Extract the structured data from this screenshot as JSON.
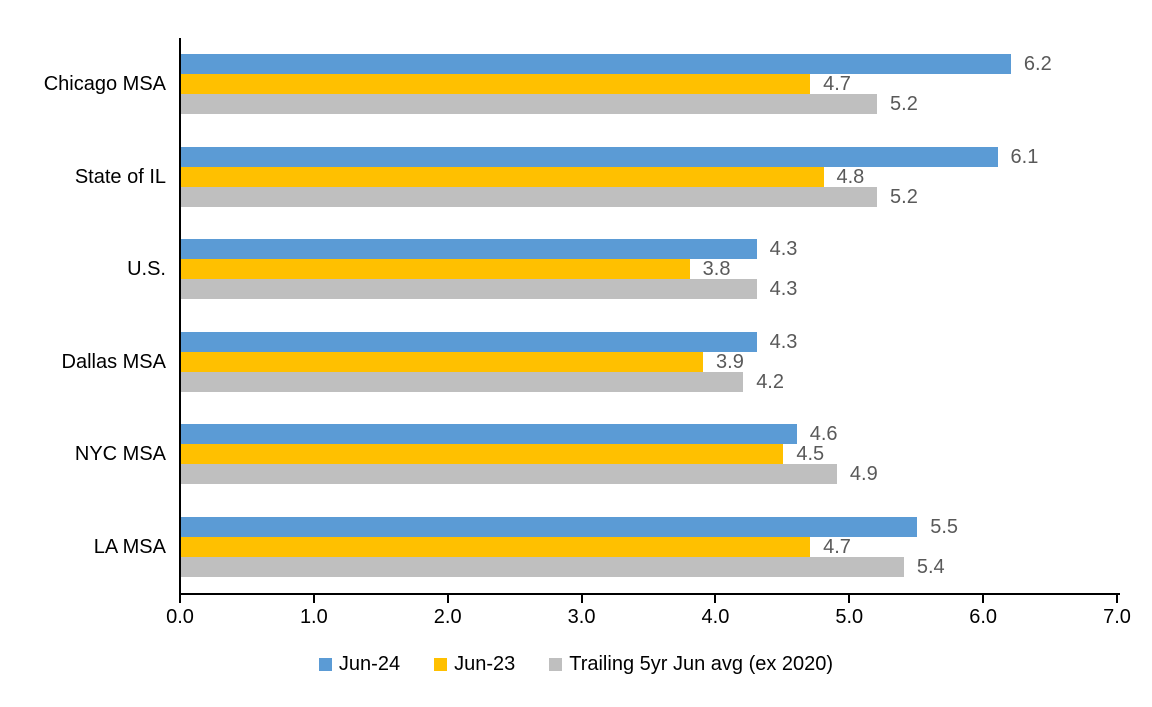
{
  "chart_data": {
    "type": "bar",
    "orientation": "horizontal",
    "title": "",
    "categories": [
      "Chicago MSA",
      "State of IL",
      "U.S.",
      "Dallas MSA",
      "NYC MSA",
      "LA MSA"
    ],
    "series": [
      {
        "name": "Jun-24",
        "color": "#5B9BD5",
        "values": [
          6.2,
          6.1,
          4.3,
          4.3,
          4.6,
          5.5
        ]
      },
      {
        "name": "Jun-23",
        "color": "#FFC000",
        "values": [
          4.7,
          4.8,
          3.8,
          3.9,
          4.5,
          4.7
        ]
      },
      {
        "name": "Trailing 5yr Jun avg (ex 2020)",
        "color": "#BFBFBF",
        "values": [
          5.2,
          5.2,
          4.3,
          4.2,
          4.9,
          5.4
        ]
      }
    ],
    "xlim": [
      0.0,
      7.0
    ],
    "x_tick_labels": [
      "0.0",
      "1.0",
      "2.0",
      "3.0",
      "4.0",
      "5.0",
      "6.0",
      "7.0"
    ],
    "value_label_decimals": 1,
    "value_label_color": "#595959",
    "axis_color": "#000000",
    "grid": false,
    "legend_position": "bottom"
  }
}
